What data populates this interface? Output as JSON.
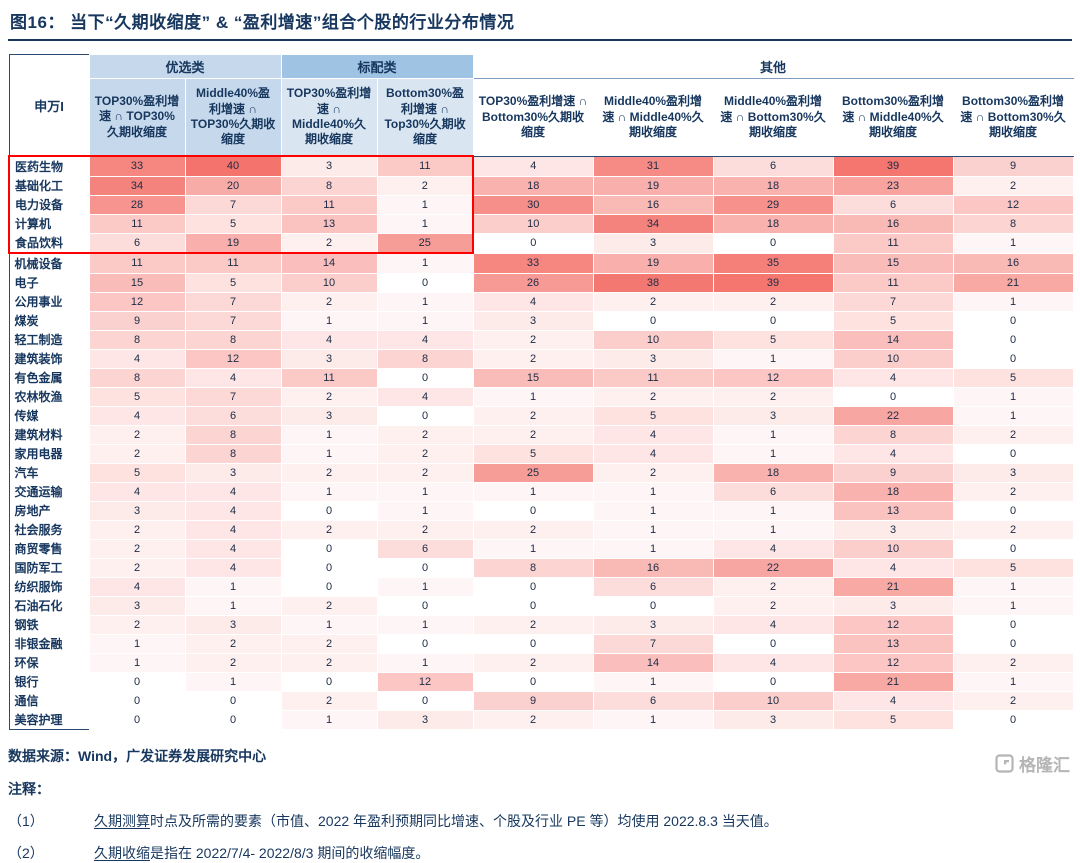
{
  "title": "图16：  当下“久期收缩度” & “盈利增速”组合个股的行业分布情况",
  "colors": {
    "navy": "#17375e",
    "table_border": "#2c4a76",
    "youxuan_header_bg": "#c6d9ec",
    "biaopei_header_bg": "#9fc3e3",
    "col_header_bg_youxuan": "#c6d9ec",
    "col_header_bg_biaopei": "#d9e6f2",
    "highlight_red": "#ff0000",
    "logo_gray": "#b5b5b5"
  },
  "heatmap": {
    "min_color": "#ffffff",
    "max_color": "#f4736c",
    "max_value": 40
  },
  "highlight": {
    "row_count": 5,
    "data_col_count": 4
  },
  "chart_data": {
    "type": "heatmap",
    "title": "当下“久期收缩度” & “盈利增速”组合个股的行业分布情况",
    "corner_label": "申万I",
    "groups": [
      {
        "label": "优选类",
        "span": 2
      },
      {
        "label": "标配类",
        "span": 2
      },
      {
        "label": "其他",
        "span": 5
      }
    ],
    "columns": [
      "TOP30%盈利增速 ∩ TOP30%久期收缩度",
      "Middle40%盈利增速 ∩ TOP30%久期收缩度",
      "TOP30%盈利增速 ∩ Middle40%久期收缩度",
      "Bottom30%盈利增速 ∩ Top30%久期收缩度",
      "TOP30%盈利增速 ∩ Bottom30%久期收缩度",
      "Middle40%盈利增速 ∩ Middle40%久期收缩度",
      "Middle40%盈利增速 ∩ Bottom30%久期收缩度",
      "Bottom30%盈利增速 ∩ Middle40%久期收缩度",
      "Bottom30%盈利增速 ∩ Bottom30%久期收缩度"
    ],
    "rows": [
      "医药生物",
      "基础化工",
      "电力设备",
      "计算机",
      "食品饮料",
      "机械设备",
      "电子",
      "公用事业",
      "煤炭",
      "轻工制造",
      "建筑装饰",
      "有色金属",
      "农林牧渔",
      "传媒",
      "建筑材料",
      "家用电器",
      "汽车",
      "交通运输",
      "房地产",
      "社会服务",
      "商贸零售",
      "国防军工",
      "纺织服饰",
      "石油石化",
      "钢铁",
      "非银金融",
      "环保",
      "银行",
      "通信",
      "美容护理"
    ],
    "values": [
      [
        33,
        40,
        3,
        11,
        4,
        31,
        6,
        39,
        9
      ],
      [
        34,
        20,
        8,
        2,
        18,
        19,
        18,
        23,
        2
      ],
      [
        28,
        7,
        11,
        1,
        30,
        16,
        29,
        6,
        12
      ],
      [
        11,
        5,
        13,
        1,
        10,
        34,
        18,
        16,
        8
      ],
      [
        6,
        19,
        2,
        25,
        0,
        3,
        0,
        11,
        1
      ],
      [
        11,
        11,
        14,
        1,
        33,
        19,
        35,
        15,
        16
      ],
      [
        15,
        5,
        10,
        0,
        26,
        38,
        39,
        11,
        21
      ],
      [
        12,
        7,
        2,
        1,
        4,
        2,
        2,
        7,
        1
      ],
      [
        9,
        7,
        1,
        1,
        3,
        0,
        0,
        5,
        0
      ],
      [
        8,
        8,
        4,
        4,
        2,
        10,
        5,
        14,
        0
      ],
      [
        4,
        12,
        3,
        8,
        2,
        3,
        1,
        10,
        0
      ],
      [
        8,
        4,
        11,
        0,
        15,
        11,
        12,
        4,
        5
      ],
      [
        5,
        7,
        2,
        4,
        1,
        2,
        2,
        0,
        1
      ],
      [
        4,
        6,
        3,
        0,
        2,
        5,
        3,
        22,
        1
      ],
      [
        2,
        8,
        1,
        2,
        2,
        4,
        1,
        8,
        2
      ],
      [
        2,
        8,
        1,
        2,
        5,
        4,
        1,
        4,
        0
      ],
      [
        5,
        3,
        2,
        2,
        25,
        2,
        18,
        9,
        3
      ],
      [
        4,
        4,
        1,
        1,
        1,
        1,
        6,
        18,
        2
      ],
      [
        3,
        4,
        0,
        1,
        0,
        1,
        1,
        13,
        0
      ],
      [
        2,
        4,
        2,
        2,
        2,
        1,
        1,
        3,
        2
      ],
      [
        2,
        4,
        0,
        6,
        1,
        1,
        4,
        10,
        0
      ],
      [
        2,
        4,
        0,
        0,
        8,
        16,
        22,
        4,
        5
      ],
      [
        4,
        1,
        0,
        1,
        0,
        6,
        2,
        21,
        1
      ],
      [
        3,
        1,
        2,
        0,
        0,
        0,
        2,
        3,
        1
      ],
      [
        2,
        3,
        1,
        1,
        2,
        3,
        4,
        12,
        0
      ],
      [
        1,
        2,
        2,
        0,
        0,
        7,
        0,
        13,
        0
      ],
      [
        1,
        2,
        2,
        1,
        2,
        14,
        4,
        12,
        2
      ],
      [
        0,
        1,
        0,
        12,
        0,
        1,
        0,
        21,
        1
      ],
      [
        0,
        0,
        2,
        0,
        9,
        6,
        10,
        4,
        2
      ],
      [
        0,
        0,
        1,
        3,
        2,
        1,
        3,
        5,
        0
      ]
    ],
    "value_range": [
      0,
      40
    ]
  },
  "footer": {
    "source": "数据来源：Wind，广发证券发展研究中心",
    "notes_label": "注释：",
    "notes": [
      {
        "num": "（1）",
        "link": "久期测算",
        "text": "时点及所需的要素（市值、2022 年盈利预期同比增速、个股及行业 PE 等）均使用 2022.8.3 当天值。"
      },
      {
        "num": "（2）",
        "link": "久期收缩",
        "text": "是指在 2022/7/4- 2022/8/3 期间的收缩幅度。"
      }
    ],
    "logo": "格隆汇"
  }
}
